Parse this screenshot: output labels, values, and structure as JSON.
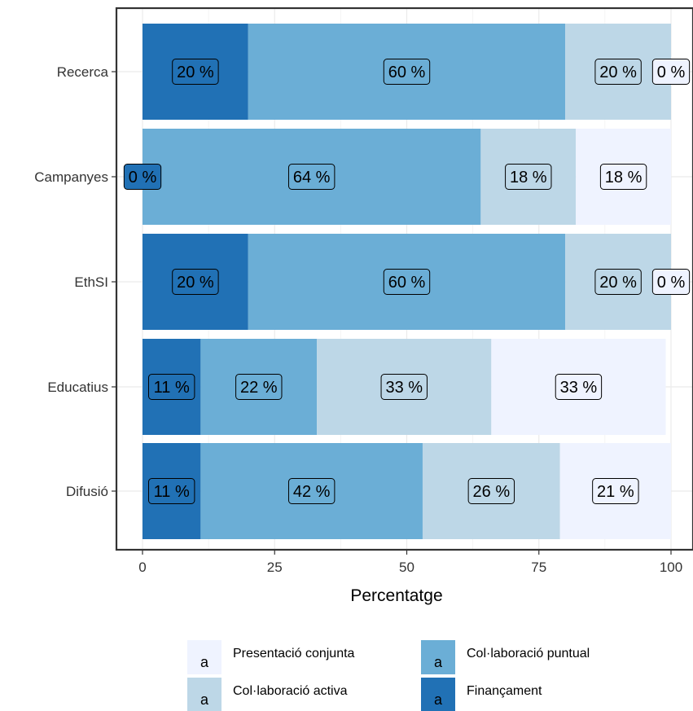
{
  "chart_data": {
    "type": "bar",
    "orientation": "horizontal",
    "stacked": true,
    "categories": [
      "Recerca",
      "Campanyes",
      "EthSI",
      "Educatius",
      "Difusió"
    ],
    "series": [
      {
        "name": "Finançament",
        "color": "#2171b5",
        "values": [
          20,
          0,
          20,
          11,
          11
        ],
        "labels": [
          "20 %",
          "0 %",
          "20 %",
          "11 %",
          "11 %"
        ]
      },
      {
        "name": "Col·laboració puntual",
        "color": "#6baed6",
        "values": [
          60,
          64,
          60,
          22,
          42
        ],
        "labels": [
          "60 %",
          "64 %",
          "60 %",
          "22 %",
          "42 %"
        ]
      },
      {
        "name": "Col·laboració activa",
        "color": "#bdd7e7",
        "values": [
          20,
          18,
          20,
          33,
          26
        ],
        "labels": [
          "20 %",
          "18 %",
          "20 %",
          "33 %",
          "26 %"
        ]
      },
      {
        "name": "Presentació conjunta",
        "color": "#eff3ff",
        "values": [
          0,
          18,
          0,
          33,
          21
        ],
        "labels": [
          "0 %",
          "18 %",
          "0 %",
          "33 %",
          "21 %"
        ]
      }
    ],
    "xlabel": "Percentatge",
    "ylabel": "",
    "xlim": [
      0,
      100
    ],
    "xticks": [
      "0",
      "25",
      "50",
      "75",
      "100"
    ],
    "grid": true,
    "legend_position": "bottom",
    "legend_key_letter": "a",
    "legend_order": [
      "Presentació conjunta",
      "Col·laboració puntual",
      "Col·laboració activa",
      "Finançament"
    ]
  }
}
